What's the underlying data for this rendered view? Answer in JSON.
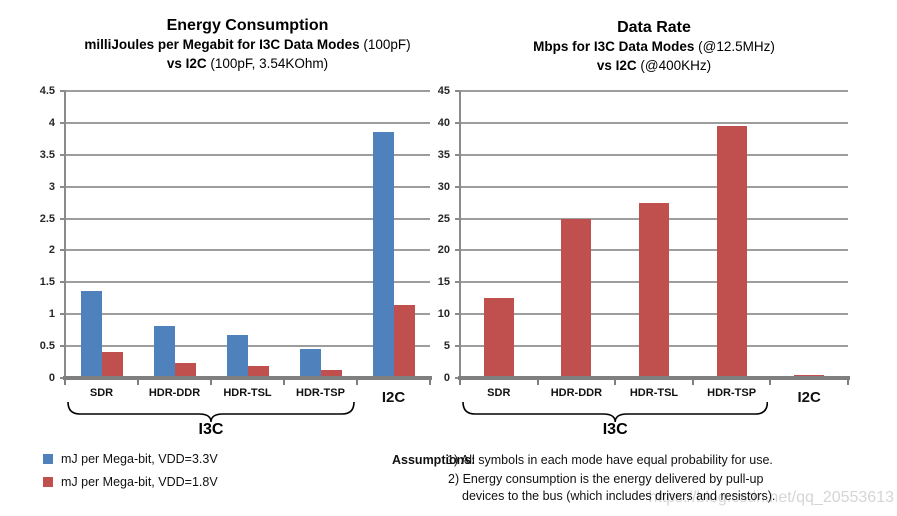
{
  "chart_data": [
    {
      "type": "bar",
      "title": "Energy Consumption",
      "title_lines": [
        [
          {
            "t": "Energy Consumption",
            "b": 1
          }
        ],
        [
          {
            "t": "milliJoules per Megabit for I3C Data Modes",
            "b": 1
          },
          {
            "t": " (100pF)",
            "b": 0
          }
        ],
        [
          {
            "t": "vs I2C",
            "b": 1
          },
          {
            "t": " (100pF, 3.54KOhm)",
            "b": 0
          }
        ]
      ],
      "categories": [
        "SDR",
        "HDR-DDR",
        "HDR-TSL",
        "HDR-TSP",
        "I2C"
      ],
      "emphasized_category": "I2C",
      "series": [
        {
          "name": "mJ per Mega-bit, VDD=3.3V",
          "color": "#4F81BD",
          "values": [
            1.36,
            0.81,
            0.67,
            0.46,
            3.85
          ]
        },
        {
          "name": "mJ per Mega-bit, VDD=1.8V",
          "color": "#C0504D",
          "values": [
            0.4,
            0.24,
            0.19,
            0.13,
            1.15
          ]
        }
      ],
      "xlabel": "",
      "ylabel": "",
      "ylim": [
        0,
        4.5
      ],
      "ytick_step": 0.5,
      "grid": true,
      "legend_position": "bottom-left-external",
      "group_brace": {
        "from": 0,
        "to": 3,
        "label": "I3C"
      }
    },
    {
      "type": "bar",
      "title": "Data Rate",
      "title_lines": [
        [
          {
            "t": "Data Rate",
            "b": 1
          }
        ],
        [
          {
            "t": "Mbps for I3C Data Modes",
            "b": 1
          },
          {
            "t": " (@12.5MHz)",
            "b": 0
          }
        ],
        [
          {
            "t": "vs I2C",
            "b": 1
          },
          {
            "t": " (@400KHz)",
            "b": 0
          }
        ]
      ],
      "categories": [
        "SDR",
        "HDR-DDR",
        "HDR-TSL",
        "HDR-TSP",
        "I2C"
      ],
      "emphasized_category": "I2C",
      "series": [
        {
          "name": "Mbps",
          "color": "#C0504D",
          "values": [
            12.5,
            25,
            27.5,
            39.5,
            0.4
          ]
        }
      ],
      "xlabel": "",
      "ylabel": "",
      "ylim": [
        0,
        45
      ],
      "ytick_step": 5,
      "grid": true,
      "legend_position": "none",
      "group_brace": {
        "from": 0,
        "to": 3,
        "label": "I3C"
      }
    }
  ],
  "legend": {
    "items": [
      {
        "label": "mJ per Mega-bit, VDD=3.3V",
        "color": "#4F81BD"
      },
      {
        "label": "mJ per Mega-bit, VDD=1.8V",
        "color": "#C0504D"
      }
    ]
  },
  "assumptions": {
    "label": "Assumptions:",
    "lines": [
      "1) All symbols in each mode have equal probability for use.",
      "2) Energy consumption is the energy delivered by pull-up",
      "devices to the bus (which includes drivers and resistors)."
    ]
  },
  "watermark": "https://blog.csdn.net/qq_20553613",
  "colors": {
    "bar_blue": "#4F81BD",
    "bar_red": "#C0504D",
    "gridline": "#9D9D9D",
    "axis": "#7F7F7F",
    "watermark": "#D5D5D5"
  }
}
